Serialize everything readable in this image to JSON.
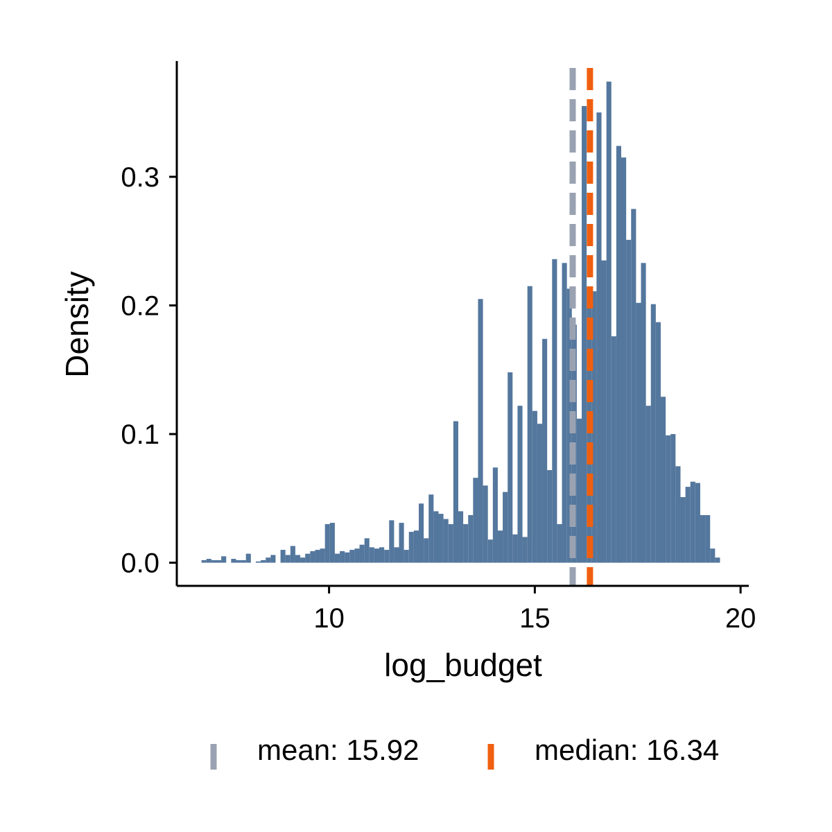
{
  "chart_data": {
    "type": "bar",
    "subtype": "histogram",
    "title": "",
    "xlabel": "log_budget",
    "ylabel": "Density",
    "xlim": [
      6.3,
      20.2
    ],
    "ylim": [
      -0.018,
      0.39
    ],
    "x_ticks": [
      10,
      15,
      20
    ],
    "x_tick_labels": [
      "10",
      "15",
      "20"
    ],
    "y_ticks": [
      0.0,
      0.1,
      0.2,
      0.3
    ],
    "y_tick_labels": [
      "0.0",
      "0.1",
      "0.2",
      "0.3"
    ],
    "grid": false,
    "legend_position": "bottom",
    "bin_start": 6.9,
    "bin_width": 0.12,
    "densities": [
      0.002,
      0.003,
      0.002,
      0.002,
      0.005,
      0.0,
      0.003,
      0.002,
      0.002,
      0.007,
      0.0,
      0.001,
      0.002,
      0.004,
      0.006,
      0.0,
      0.01,
      0.006,
      0.013,
      0.006,
      0.004,
      0.007,
      0.009,
      0.01,
      0.011,
      0.03,
      0.031,
      0.007,
      0.009,
      0.008,
      0.01,
      0.011,
      0.014,
      0.019,
      0.012,
      0.011,
      0.012,
      0.01,
      0.033,
      0.012,
      0.031,
      0.01,
      0.024,
      0.025,
      0.046,
      0.019,
      0.053,
      0.04,
      0.038,
      0.034,
      0.03,
      0.11,
      0.04,
      0.03,
      0.037,
      0.066,
      0.205,
      0.06,
      0.018,
      0.074,
      0.025,
      0.055,
      0.148,
      0.022,
      0.122,
      0.02,
      0.215,
      0.118,
      0.108,
      0.174,
      0.072,
      0.236,
      0.03,
      0.233,
      0.213,
      0.185,
      0.112,
      0.355,
      0.214,
      0.211,
      0.35,
      0.235,
      0.374,
      0.176,
      0.324,
      0.315,
      0.251,
      0.275,
      0.202,
      0.233,
      0.122,
      0.201,
      0.187,
      0.129,
      0.099,
      0.1,
      0.075,
      0.051,
      0.059,
      0.063,
      0.062,
      0.037,
      0.037,
      0.011,
      0.004
    ],
    "series": [
      {
        "name": "",
        "kind": "histogram",
        "color": "#54779D"
      },
      {
        "name": "mean: 15.92",
        "kind": "vline",
        "x": 15.92,
        "color": "#9AA2B2",
        "style": "dashed"
      },
      {
        "name": "median: 16.34",
        "kind": "vline",
        "x": 16.34,
        "color": "#F05F0F",
        "style": "dashed"
      }
    ],
    "legend": [
      {
        "label": "mean: 15.92",
        "color": "#9AA2B2"
      },
      {
        "label": "median: 16.34",
        "color": "#F05F0F"
      }
    ]
  }
}
